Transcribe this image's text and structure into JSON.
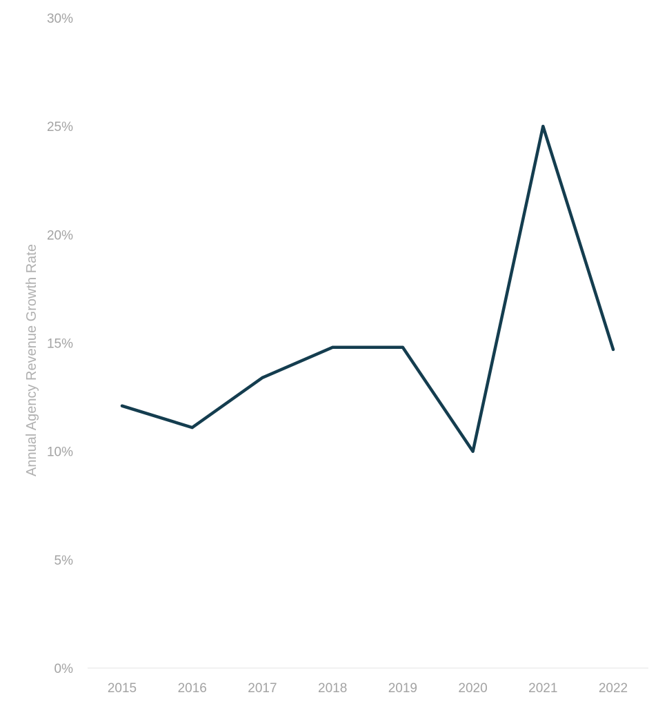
{
  "chart_data": {
    "type": "line",
    "title": "",
    "xlabel": "",
    "ylabel": "Annual Agency Revenue Growth Rate",
    "categories": [
      "2015",
      "2016",
      "2017",
      "2018",
      "2019",
      "2020",
      "2021",
      "2022"
    ],
    "series": [
      {
        "values": [
          12.1,
          11.1,
          13.4,
          14.8,
          14.8,
          10.0,
          25.0,
          14.7
        ],
        "color": "#143d4f"
      }
    ],
    "ylim": [
      0,
      30
    ],
    "yticks": [
      0,
      5,
      10,
      15,
      20,
      25,
      30
    ],
    "ytick_labels": [
      "0%",
      "5%",
      "10%",
      "15%",
      "20%",
      "25%",
      "30%"
    ],
    "grid": false,
    "legend": "none",
    "colors": {
      "line": "#143d4f",
      "tick_text": "#a3a3a3",
      "axis_title": "#b0b0b0",
      "baseline": "#e3e3e3"
    }
  }
}
